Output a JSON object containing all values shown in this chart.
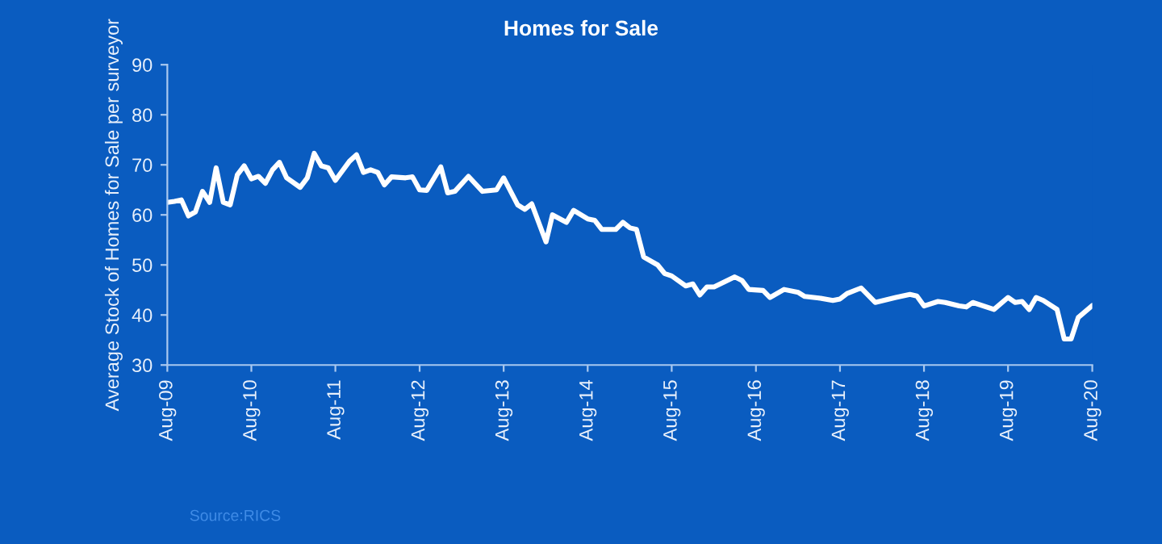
{
  "chart_data": {
    "type": "line",
    "title": "Homes for Sale",
    "ylabel": "Average Stock of Homes for Sale per surveyor",
    "annotations": [
      "Source:RICS"
    ],
    "x": [
      "2009-08",
      "2009-09",
      "2009-10",
      "2009-11",
      "2009-12",
      "2010-01",
      "2010-02",
      "2010-03",
      "2010-04",
      "2010-05",
      "2010-06",
      "2010-07",
      "2010-08",
      "2010-09",
      "2010-10",
      "2010-11",
      "2010-12",
      "2011-01",
      "2011-03",
      "2011-04",
      "2011-05",
      "2011-06",
      "2011-07",
      "2011-08",
      "2011-10",
      "2011-11",
      "2011-12",
      "2012-01",
      "2012-02",
      "2012-03",
      "2012-04",
      "2012-06",
      "2012-07",
      "2012-08",
      "2012-09",
      "2012-11",
      "2012-12",
      "2013-01",
      "2013-03",
      "2013-05",
      "2013-07",
      "2013-08",
      "2013-10",
      "2013-11",
      "2013-12",
      "2014-02",
      "2014-03",
      "2014-05",
      "2014-06",
      "2014-08",
      "2014-09",
      "2014-10",
      "2014-12",
      "2015-01",
      "2015-02",
      "2015-03",
      "2015-04",
      "2015-06",
      "2015-07",
      "2015-08",
      "2015-10",
      "2015-11",
      "2015-12",
      "2016-01",
      "2016-02",
      "2016-05",
      "2016-06",
      "2016-07",
      "2016-09",
      "2016-10",
      "2016-12",
      "2017-02",
      "2017-03",
      "2017-05",
      "2017-07",
      "2017-08",
      "2017-09",
      "2017-11",
      "2018-01",
      "2018-04",
      "2018-06",
      "2018-07",
      "2018-08",
      "2018-10",
      "2018-11",
      "2019-01",
      "2019-02",
      "2019-03",
      "2019-06",
      "2019-08",
      "2019-09",
      "2019-10",
      "2019-11",
      "2019-12",
      "2020-01",
      "2020-03",
      "2020-04",
      "2020-05",
      "2020-06",
      "2020-08"
    ],
    "series": [
      {
        "color": "#ffffff",
        "values": [
          62.5,
          62.7,
          63,
          59.8,
          60.6,
          64.7,
          62.5,
          69.4,
          62.5,
          62,
          68,
          69.8,
          67.2,
          67.7,
          66.3,
          69,
          70.5,
          67.4,
          65.5,
          67.4,
          72.3,
          69.8,
          69.4,
          66.9,
          70.7,
          72,
          68.5,
          69,
          68.5,
          66,
          67.6,
          67.4,
          67.6,
          65,
          64.9,
          69.6,
          64.4,
          64.7,
          67.7,
          64.7,
          65,
          67.4,
          62,
          61.1,
          62.2,
          54.6,
          60,
          58.5,
          60.9,
          59.2,
          58.9,
          57.1,
          57.1,
          58.5,
          57.4,
          57.1,
          51.6,
          50,
          48.3,
          47.8,
          45.8,
          46.2,
          44,
          45.6,
          45.6,
          47.6,
          46.9,
          45.1,
          44.9,
          43.5,
          45.1,
          44.5,
          43.7,
          43.4,
          42.9,
          43.2,
          44.3,
          45.4,
          42.5,
          43.5,
          44.1,
          43.8,
          41.8,
          42.7,
          42.5,
          41.8,
          41.6,
          42.5,
          41.1,
          43.5,
          42.5,
          42.7,
          41.1,
          43.5,
          42.9,
          41.1,
          35.2,
          35.2,
          39.5,
          41.9
        ]
      }
    ],
    "xlim": [
      "2009-08",
      "2020-08"
    ],
    "xticks": [
      {
        "value": "2009-08",
        "label": "Aug-09"
      },
      {
        "value": "2010-08",
        "label": "Aug-10"
      },
      {
        "value": "2011-08",
        "label": "Aug-11"
      },
      {
        "value": "2012-08",
        "label": "Aug-12"
      },
      {
        "value": "2013-08",
        "label": "Aug-13"
      },
      {
        "value": "2014-08",
        "label": "Aug-14"
      },
      {
        "value": "2015-08",
        "label": "Aug-15"
      },
      {
        "value": "2016-08",
        "label": "Aug-16"
      },
      {
        "value": "2017-08",
        "label": "Aug-17"
      },
      {
        "value": "2018-08",
        "label": "Aug-18"
      },
      {
        "value": "2019-08",
        "label": "Aug-19"
      },
      {
        "value": "2020-08",
        "label": "Aug-20"
      }
    ],
    "ylim": [
      30,
      90
    ],
    "yticks": [
      30,
      40,
      50,
      60,
      70,
      80,
      90
    ],
    "marker": "none",
    "line_style": "solid"
  }
}
